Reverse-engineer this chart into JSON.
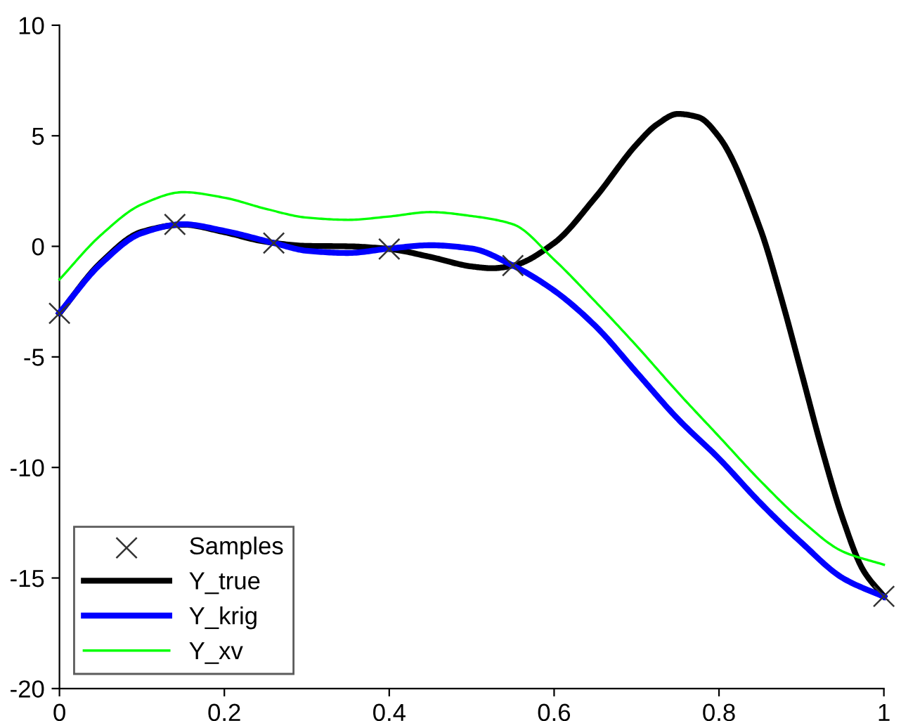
{
  "chart_data": {
    "type": "line",
    "xlim": [
      0,
      1
    ],
    "ylim": [
      -20,
      10
    ],
    "xticks": [
      0,
      0.2,
      0.4,
      0.6,
      0.8,
      1
    ],
    "yticks": [
      -20,
      -15,
      -10,
      -5,
      0,
      5,
      10
    ],
    "grid": false,
    "legend": "bottom left",
    "series": [
      {
        "name": "Samples",
        "type": "scatter",
        "marker": "cross",
        "color": "#333333",
        "x": [
          0,
          0.14,
          0.26,
          0.4,
          0.55,
          1
        ],
        "values": [
          -3.03,
          0.99,
          0.15,
          -0.12,
          -0.87,
          -15.83
        ]
      },
      {
        "name": "Y_true",
        "color": "#000000",
        "x": [
          0,
          0.05,
          0.1,
          0.15,
          0.2,
          0.25,
          0.3,
          0.35,
          0.4,
          0.45,
          0.5,
          0.525,
          0.55,
          0.6,
          0.65,
          0.7,
          0.725,
          0.75,
          0.775,
          0.8,
          0.85,
          0.875,
          0.9,
          0.925,
          0.95,
          0.975,
          1
        ],
        "values": [
          -3.03,
          -0.74,
          0.66,
          0.98,
          0.64,
          0.21,
          0.02,
          0.0,
          -0.12,
          -0.48,
          -0.91,
          -0.99,
          -0.87,
          0.15,
          2.21,
          4.61,
          5.52,
          5.99,
          5.84,
          4.95,
          0.8,
          -2.27,
          -5.71,
          -9.19,
          -12.3,
          -14.65,
          -15.83
        ]
      },
      {
        "name": "Y_krig",
        "color": "#0000ff",
        "x": [
          0,
          0.05,
          0.1,
          0.15,
          0.2,
          0.26,
          0.3,
          0.35,
          0.4,
          0.45,
          0.5,
          0.55,
          0.6,
          0.65,
          0.7,
          0.75,
          0.8,
          0.85,
          0.9,
          0.95,
          1
        ],
        "values": [
          -3.0,
          -0.8,
          0.6,
          1.0,
          0.7,
          0.15,
          -0.2,
          -0.3,
          -0.1,
          0.05,
          -0.1,
          -0.87,
          -2.0,
          -3.6,
          -5.7,
          -7.8,
          -9.6,
          -11.6,
          -13.4,
          -15.0,
          -15.85
        ]
      },
      {
        "name": "Y_xv",
        "color": "#00ff00",
        "x": [
          0,
          0.05,
          0.1,
          0.15,
          0.2,
          0.25,
          0.3,
          0.35,
          0.4,
          0.45,
          0.5,
          0.55,
          0.6,
          0.65,
          0.7,
          0.75,
          0.8,
          0.85,
          0.9,
          0.95,
          1
        ],
        "values": [
          -1.5,
          0.5,
          1.9,
          2.45,
          2.2,
          1.7,
          1.3,
          1.2,
          1.35,
          1.55,
          1.37,
          1.0,
          -0.6,
          -2.5,
          -4.5,
          -6.6,
          -8.6,
          -10.6,
          -12.4,
          -13.8,
          -14.4
        ]
      }
    ]
  }
}
